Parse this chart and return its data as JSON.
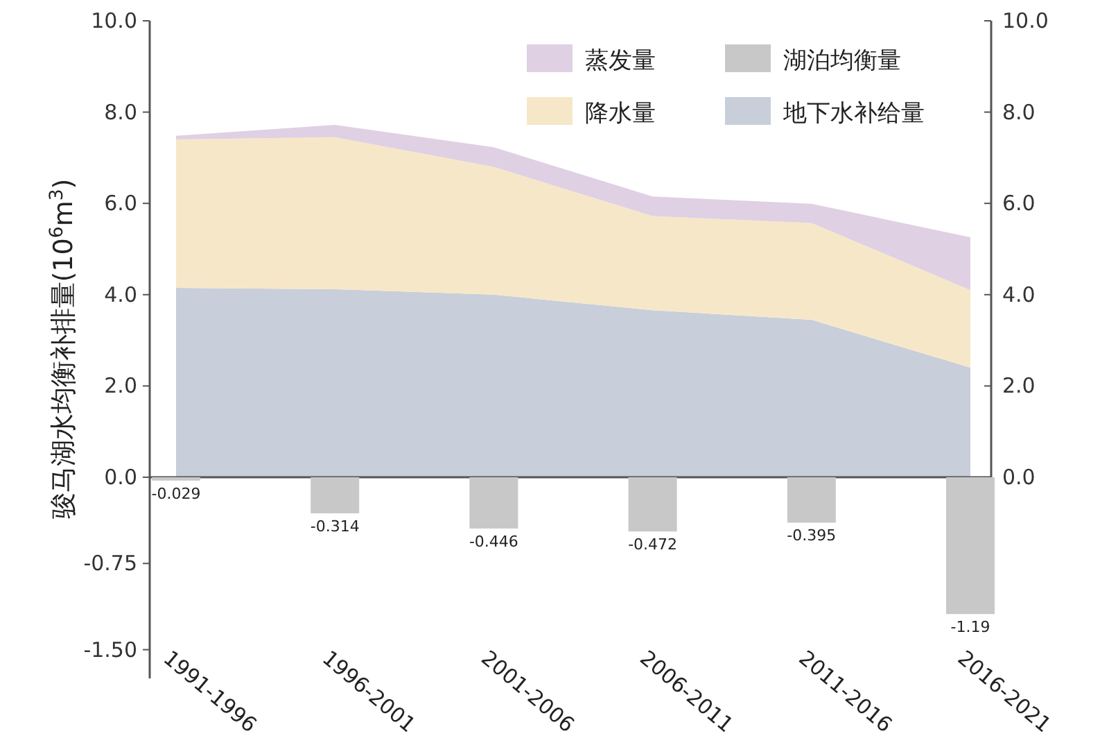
{
  "chart_data": [
    {
      "type": "area",
      "ylabel": "骏马湖水均衡补排量(10$^{6}$m$^{3}$)",
      "categories": [
        null,
        null,
        null,
        null,
        null,
        null
      ],
      "stacked": true,
      "series": [
        {
          "name": "地下水补给量",
          "color": "#c8ceda",
          "values": [
            4.15,
            4.12,
            4.0,
            3.66,
            3.45,
            2.4
          ]
        },
        {
          "name": "降水量",
          "color": "#f6e7c8",
          "values": [
            3.25,
            3.33,
            2.8,
            2.06,
            2.12,
            1.7
          ]
        },
        {
          "name": "蒸发量",
          "color": "#dfd0e4",
          "values": [
            0.08,
            0.27,
            0.43,
            0.43,
            0.42,
            1.16
          ]
        }
      ],
      "ylim": [
        0,
        10
      ],
      "yticks": [
        {
          "value": 0,
          "label": "0.0"
        },
        {
          "value": 2,
          "label": "2.0"
        },
        {
          "value": 4,
          "label": "4.0"
        },
        {
          "value": 6,
          "label": "6.0"
        },
        {
          "value": 8,
          "label": "8.0"
        },
        {
          "value": 10,
          "label": "10.0"
        }
      ],
      "y2lim": [
        0,
        10
      ],
      "y2ticks": [
        {
          "value": 0,
          "label": "0.0"
        },
        {
          "value": 2,
          "label": "2.0"
        },
        {
          "value": 4,
          "label": "4.0"
        },
        {
          "value": 6,
          "label": "6.0"
        },
        {
          "value": 8,
          "label": "8.0"
        },
        {
          "value": 10,
          "label": "10.0"
        }
      ],
      "tick_labels": "y",
      "legend": "top right"
    },
    {
      "type": "bar",
      "categories": [
        "1991-1996",
        "1996-2001",
        "2001-2006",
        "2006-2011",
        "2011-2016",
        "2016-2021"
      ],
      "series": [
        {
          "name": "湖泊均衡量",
          "color": "#c8c8c8",
          "values": [
            -0.029,
            -0.314,
            -0.446,
            -0.472,
            -0.395,
            -1.19
          ]
        }
      ],
      "ylim": [
        -1.75,
        0
      ],
      "yticks": [
        {
          "value": 0,
          "label": null
        },
        {
          "value": -0.75,
          "label": "-0.75"
        },
        {
          "value": -1.5,
          "label": "-1.50"
        }
      ],
      "data_labels": true,
      "legend": "top right"
    }
  ]
}
